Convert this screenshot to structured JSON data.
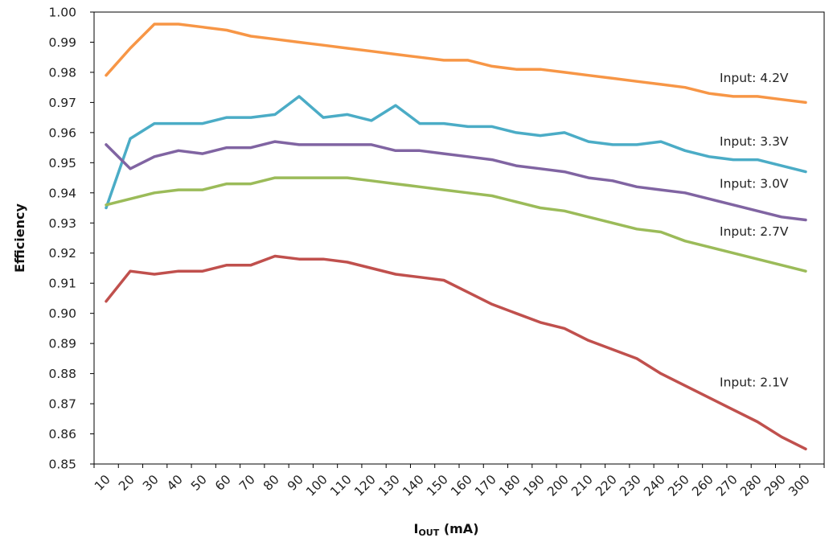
{
  "chart_data": {
    "type": "line",
    "title": "",
    "ylabel": "Efficiency",
    "xlabel_main": "I",
    "xlabel_sub": "OUT",
    "xlabel_unit": " (mA)",
    "ylim": [
      0.85,
      1.0
    ],
    "y_ticks": [
      0.85,
      0.86,
      0.87,
      0.88,
      0.89,
      0.9,
      0.91,
      0.92,
      0.93,
      0.94,
      0.95,
      0.96,
      0.97,
      0.98,
      0.99,
      1.0
    ],
    "y_tick_labels": [
      "0.85",
      "0.86",
      "0.87",
      "0.88",
      "0.89",
      "0.90",
      "0.91",
      "0.92",
      "0.93",
      "0.94",
      "0.95",
      "0.96",
      "0.97",
      "0.98",
      "0.99",
      "1.00"
    ],
    "categories": [
      "10",
      "20",
      "30",
      "40",
      "50",
      "60",
      "70",
      "80",
      "90",
      "100",
      "110",
      "120",
      "130",
      "140",
      "150",
      "160",
      "170",
      "180",
      "190",
      "200",
      "210",
      "220",
      "230",
      "240",
      "250",
      "260",
      "270",
      "280",
      "290",
      "300"
    ],
    "grid": false,
    "series": [
      {
        "name": "Input: 4.2V",
        "color": "#F79646",
        "values": [
          0.979,
          0.988,
          0.996,
          0.996,
          0.995,
          0.994,
          0.992,
          0.991,
          0.99,
          0.989,
          0.988,
          0.987,
          0.986,
          0.985,
          0.984,
          0.984,
          0.982,
          0.981,
          0.981,
          0.98,
          0.979,
          0.978,
          0.977,
          0.976,
          0.975,
          0.973,
          0.972,
          0.972,
          0.971,
          0.97
        ]
      },
      {
        "name": "Input: 3.3V",
        "color": "#4BACC6",
        "values": [
          0.935,
          0.958,
          0.963,
          0.963,
          0.963,
          0.965,
          0.965,
          0.966,
          0.972,
          0.965,
          0.966,
          0.964,
          0.969,
          0.963,
          0.963,
          0.962,
          0.962,
          0.96,
          0.959,
          0.96,
          0.957,
          0.956,
          0.956,
          0.957,
          0.954,
          0.952,
          0.951,
          0.951,
          0.949,
          0.947
        ]
      },
      {
        "name": "Input: 3.0V",
        "color": "#8064A2",
        "values": [
          0.956,
          0.948,
          0.952,
          0.954,
          0.953,
          0.955,
          0.955,
          0.957,
          0.956,
          0.956,
          0.956,
          0.956,
          0.954,
          0.954,
          0.953,
          0.952,
          0.951,
          0.949,
          0.948,
          0.947,
          0.945,
          0.944,
          0.942,
          0.941,
          0.94,
          0.938,
          0.936,
          0.934,
          0.932,
          0.931
        ]
      },
      {
        "name": "Input: 2.7V",
        "color": "#9BBB59",
        "values": [
          0.936,
          0.938,
          0.94,
          0.941,
          0.941,
          0.943,
          0.943,
          0.945,
          0.945,
          0.945,
          0.945,
          0.944,
          0.943,
          0.942,
          0.941,
          0.94,
          0.939,
          0.937,
          0.935,
          0.934,
          0.932,
          0.93,
          0.928,
          0.927,
          0.924,
          0.922,
          0.92,
          0.918,
          0.916,
          0.914
        ]
      },
      {
        "name": "Input: 2.1V",
        "color": "#C0504D",
        "values": [
          0.904,
          0.914,
          0.913,
          0.914,
          0.914,
          0.916,
          0.916,
          0.919,
          0.918,
          0.918,
          0.917,
          0.915,
          0.913,
          0.912,
          0.911,
          0.907,
          0.903,
          0.9,
          0.897,
          0.895,
          0.891,
          0.888,
          0.885,
          0.88,
          0.876,
          0.872,
          0.868,
          0.864,
          0.859,
          0.855
        ]
      }
    ],
    "series_labels": [
      {
        "text": "Input: 4.2V",
        "series": 0
      },
      {
        "text": "Input: 3.3V",
        "series": 1
      },
      {
        "text": "Input: 3.0V",
        "series": 2
      },
      {
        "text": "Input: 2.7V",
        "series": 3
      },
      {
        "text": "Input: 2.1V",
        "series": 4
      }
    ]
  }
}
